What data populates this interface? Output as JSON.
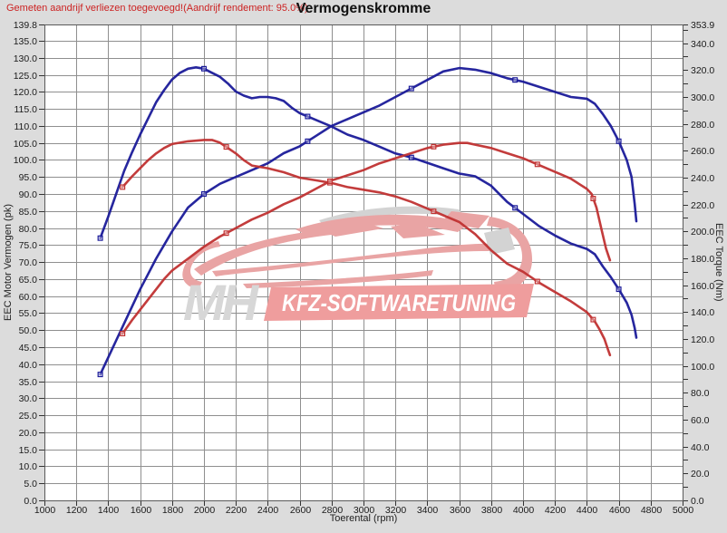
{
  "header": {
    "note": "Gemeten aandrijf verliezen toegevoegd!(Aandrijf rendement: 95.0%)",
    "title": "Vermogenskromme"
  },
  "watermark": {
    "brand_short": "MH",
    "brand_text": "KFZ-SOFTWARETUNING"
  },
  "colors": {
    "background": "#dcdcdc",
    "plot_background": "#ffffff",
    "grid": "#8f8f8f",
    "frame": "#5a5a5a",
    "tick_text": "#1a1a1a",
    "note_red": "#cc2222",
    "curve_blue": "#1a1a99",
    "curve_red": "#c03232",
    "watermark_pink": "#e9a4a4",
    "watermark_gray": "#d3d3d3",
    "banner_pink": "#ef9d9d",
    "banner_text": "#ffffff"
  },
  "chart_data": {
    "type": "line",
    "title": "Vermogenskromme",
    "grid": true,
    "legend": "none",
    "x_axis": {
      "label": "Toerental (rpm)",
      "min": 1000,
      "max": 5000,
      "ticks": [
        1000,
        1200,
        1400,
        1600,
        1800,
        2000,
        2200,
        2400,
        2600,
        2800,
        3000,
        3200,
        3400,
        3600,
        3800,
        4000,
        4200,
        4400,
        4600,
        4800,
        5000
      ]
    },
    "y_left": {
      "label": "EEC Motor Vermogen (pk)",
      "min": 0,
      "max": 139.8,
      "ticks": [
        139.8,
        135,
        130,
        125,
        120,
        115,
        110,
        105,
        100,
        95,
        90,
        85,
        80,
        75,
        70,
        65,
        60,
        55,
        50,
        45,
        40,
        35,
        30,
        25,
        20,
        15,
        10,
        5,
        0
      ]
    },
    "y_right": {
      "label": "EEC Torque (Nm)",
      "min": 0,
      "max": 353.9,
      "labeled_ticks": [
        353.9,
        340,
        320,
        300,
        280,
        260,
        240,
        220,
        200,
        180,
        160,
        140,
        120,
        100,
        80,
        60,
        40,
        20,
        0
      ],
      "minor_tick_step": 10
    },
    "series": [
      {
        "name": "tuned-torque-Nm",
        "axis": "right",
        "color_key": "curve_blue",
        "markers_rpm": [
          1350,
          2000,
          2650,
          3300,
          3950,
          4600
        ],
        "points": [
          [
            1350,
            195
          ],
          [
            1400,
            211
          ],
          [
            1450,
            228
          ],
          [
            1500,
            245
          ],
          [
            1550,
            259
          ],
          [
            1600,
            272
          ],
          [
            1650,
            284
          ],
          [
            1700,
            296
          ],
          [
            1750,
            305
          ],
          [
            1800,
            313
          ],
          [
            1850,
            318
          ],
          [
            1900,
            321
          ],
          [
            1950,
            322
          ],
          [
            2000,
            321
          ],
          [
            2050,
            318
          ],
          [
            2100,
            315
          ],
          [
            2150,
            310
          ],
          [
            2200,
            304
          ],
          [
            2250,
            301
          ],
          [
            2300,
            299
          ],
          [
            2350,
            300
          ],
          [
            2400,
            300
          ],
          [
            2450,
            299
          ],
          [
            2500,
            297
          ],
          [
            2550,
            292
          ],
          [
            2600,
            288
          ],
          [
            2700,
            283
          ],
          [
            2800,
            278
          ],
          [
            2900,
            272
          ],
          [
            3000,
            268
          ],
          [
            3100,
            263
          ],
          [
            3200,
            258
          ],
          [
            3300,
            255
          ],
          [
            3400,
            251
          ],
          [
            3500,
            247
          ],
          [
            3600,
            243
          ],
          [
            3700,
            241
          ],
          [
            3800,
            234
          ],
          [
            3900,
            222
          ],
          [
            4000,
            213
          ],
          [
            4100,
            204
          ],
          [
            4200,
            197
          ],
          [
            4300,
            191
          ],
          [
            4400,
            187
          ],
          [
            4450,
            183
          ],
          [
            4500,
            174
          ],
          [
            4550,
            166
          ],
          [
            4600,
            157
          ],
          [
            4650,
            147
          ],
          [
            4680,
            138
          ],
          [
            4700,
            128
          ],
          [
            4710,
            121
          ]
        ]
      },
      {
        "name": "tuned-power-pk",
        "axis": "left",
        "color_key": "curve_blue",
        "markers_rpm": [
          1350,
          2000,
          2650,
          3300,
          3950,
          4600
        ],
        "points": [
          [
            1350,
            37
          ],
          [
            1400,
            42
          ],
          [
            1450,
            47
          ],
          [
            1500,
            52
          ],
          [
            1550,
            57
          ],
          [
            1600,
            62
          ],
          [
            1650,
            66.5
          ],
          [
            1700,
            71
          ],
          [
            1750,
            75
          ],
          [
            1800,
            79
          ],
          [
            1850,
            82.5
          ],
          [
            1900,
            86
          ],
          [
            1950,
            88
          ],
          [
            2000,
            90
          ],
          [
            2100,
            93
          ],
          [
            2200,
            95
          ],
          [
            2300,
            97
          ],
          [
            2400,
            99
          ],
          [
            2500,
            102
          ],
          [
            2600,
            104
          ],
          [
            2700,
            107
          ],
          [
            2800,
            110
          ],
          [
            2900,
            112
          ],
          [
            3000,
            114
          ],
          [
            3100,
            116
          ],
          [
            3200,
            118.5
          ],
          [
            3300,
            121
          ],
          [
            3400,
            123.5
          ],
          [
            3500,
            126
          ],
          [
            3600,
            127
          ],
          [
            3700,
            126.5
          ],
          [
            3800,
            125.5
          ],
          [
            3900,
            124
          ],
          [
            4000,
            123
          ],
          [
            4100,
            121.5
          ],
          [
            4200,
            120
          ],
          [
            4300,
            118.5
          ],
          [
            4400,
            118
          ],
          [
            4450,
            116.5
          ],
          [
            4500,
            113.5
          ],
          [
            4550,
            110
          ],
          [
            4600,
            105.5
          ],
          [
            4650,
            100
          ],
          [
            4680,
            95
          ],
          [
            4700,
            87
          ],
          [
            4710,
            82
          ]
        ]
      },
      {
        "name": "stock-torque-Nm",
        "axis": "right",
        "color_key": "curve_red",
        "markers_rpm": [
          1490,
          2140,
          2790,
          3440,
          4090,
          4440
        ],
        "points": [
          [
            1490,
            233
          ],
          [
            1550,
            241
          ],
          [
            1600,
            247
          ],
          [
            1650,
            253
          ],
          [
            1700,
            258
          ],
          [
            1750,
            262
          ],
          [
            1800,
            265
          ],
          [
            1900,
            267
          ],
          [
            2000,
            268
          ],
          [
            2050,
            268
          ],
          [
            2100,
            266
          ],
          [
            2150,
            262
          ],
          [
            2200,
            258
          ],
          [
            2250,
            253
          ],
          [
            2300,
            249
          ],
          [
            2350,
            248
          ],
          [
            2400,
            247
          ],
          [
            2500,
            244
          ],
          [
            2600,
            240
          ],
          [
            2700,
            238
          ],
          [
            2800,
            236
          ],
          [
            2900,
            233
          ],
          [
            3000,
            231
          ],
          [
            3100,
            229
          ],
          [
            3200,
            226
          ],
          [
            3300,
            222
          ],
          [
            3400,
            217
          ],
          [
            3500,
            212
          ],
          [
            3600,
            207
          ],
          [
            3700,
            198
          ],
          [
            3800,
            186
          ],
          [
            3900,
            176
          ],
          [
            4000,
            170
          ],
          [
            4100,
            162
          ],
          [
            4200,
            155
          ],
          [
            4300,
            148
          ],
          [
            4400,
            140
          ],
          [
            4450,
            133
          ],
          [
            4480,
            127
          ],
          [
            4510,
            120
          ],
          [
            4530,
            113
          ],
          [
            4545,
            108
          ]
        ]
      },
      {
        "name": "stock-power-pk",
        "axis": "left",
        "color_key": "curve_red",
        "markers_rpm": [
          1490,
          2140,
          2790,
          3440,
          4090,
          4440
        ],
        "points": [
          [
            1490,
            49
          ],
          [
            1550,
            53
          ],
          [
            1600,
            56
          ],
          [
            1650,
            59
          ],
          [
            1700,
            62
          ],
          [
            1750,
            65
          ],
          [
            1800,
            67.5
          ],
          [
            1900,
            71
          ],
          [
            2000,
            74.5
          ],
          [
            2100,
            77.5
          ],
          [
            2200,
            80
          ],
          [
            2300,
            82.5
          ],
          [
            2400,
            84.5
          ],
          [
            2500,
            87
          ],
          [
            2600,
            89
          ],
          [
            2700,
            91.5
          ],
          [
            2800,
            94
          ],
          [
            2900,
            95.5
          ],
          [
            3000,
            97
          ],
          [
            3100,
            99
          ],
          [
            3200,
            100.5
          ],
          [
            3300,
            102
          ],
          [
            3400,
            103.5
          ],
          [
            3500,
            104.5
          ],
          [
            3600,
            105
          ],
          [
            3650,
            105
          ],
          [
            3700,
            104.5
          ],
          [
            3800,
            103.5
          ],
          [
            3900,
            102
          ],
          [
            4000,
            100.5
          ],
          [
            4100,
            98.5
          ],
          [
            4200,
            96.5
          ],
          [
            4300,
            94.5
          ],
          [
            4350,
            93
          ],
          [
            4400,
            91.5
          ],
          [
            4430,
            90
          ],
          [
            4460,
            86
          ],
          [
            4490,
            80
          ],
          [
            4520,
            74
          ],
          [
            4545,
            70.5
          ]
        ]
      }
    ]
  }
}
